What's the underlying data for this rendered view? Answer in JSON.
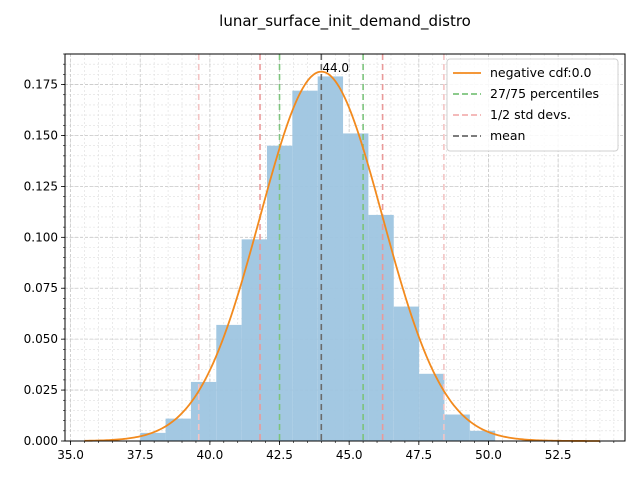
{
  "chart_data": {
    "type": "bar",
    "title": "lunar_surface_init_demand_distro",
    "xlabel": "",
    "ylabel": "",
    "xlim": [
      34.8,
      54.9
    ],
    "ylim": [
      0,
      0.19
    ],
    "x_ticks": [
      35.0,
      37.5,
      40.0,
      42.5,
      45.0,
      47.5,
      50.0,
      52.5
    ],
    "x_tick_labels": [
      "35.0",
      "37.5",
      "40.0",
      "42.5",
      "45.0",
      "47.5",
      "50.0",
      "52.5"
    ],
    "y_ticks": [
      0,
      0.025,
      0.05,
      0.075,
      0.1,
      0.125,
      0.15,
      0.175
    ],
    "y_tick_labels": [
      "0.000",
      "0.025",
      "0.050",
      "0.075",
      "0.100",
      "0.125",
      "0.150",
      "0.175"
    ],
    "grid": true,
    "histogram": {
      "name": "",
      "color": "#9ec5e0",
      "bin_width": 0.91,
      "bins": [
        {
          "left": 37.5,
          "value": 0.004
        },
        {
          "left": 38.41,
          "value": 0.011
        },
        {
          "left": 39.32,
          "value": 0.029
        },
        {
          "left": 40.23,
          "value": 0.057
        },
        {
          "left": 41.14,
          "value": 0.099
        },
        {
          "left": 42.05,
          "value": 0.145
        },
        {
          "left": 42.96,
          "value": 0.172
        },
        {
          "left": 43.87,
          "value": 0.179
        },
        {
          "left": 44.78,
          "value": 0.151
        },
        {
          "left": 45.69,
          "value": 0.111
        },
        {
          "left": 46.6,
          "value": 0.066
        },
        {
          "left": 47.51,
          "value": 0.033
        },
        {
          "left": 48.42,
          "value": 0.013
        },
        {
          "left": 49.33,
          "value": 0.005
        }
      ]
    },
    "curve": {
      "name": "negative cdf:0.0",
      "color": "#f28a1e",
      "mean": 44.0,
      "std": 2.2,
      "x_range": [
        35.5,
        54.0
      ]
    },
    "vlines": [
      {
        "group": "27/75 percentiles",
        "x": 42.5,
        "color": "#7cc47c"
      },
      {
        "group": "27/75 percentiles",
        "x": 45.5,
        "color": "#7cc47c"
      },
      {
        "group": "1/2 std devs.",
        "x": 41.8,
        "color": "#ea9a9a"
      },
      {
        "group": "1/2 std devs.",
        "x": 46.2,
        "color": "#ea9a9a"
      },
      {
        "group": "1/2 std devs.",
        "x": 39.6,
        "color": "#f3c4c4"
      },
      {
        "group": "1/2 std devs.",
        "x": 48.4,
        "color": "#f3c4c4"
      },
      {
        "group": "mean",
        "x": 44.0,
        "color": "#6a6a6a"
      }
    ],
    "mean_annotation": {
      "x": 44.0,
      "text": "44.0"
    },
    "legend": {
      "placement": "top-right",
      "entries": [
        {
          "label": "negative cdf:0.0",
          "color": "#f28a1e",
          "style": "solid"
        },
        {
          "label": "27/75 percentiles",
          "color": "#7cc47c",
          "style": "dashed"
        },
        {
          "label": "1/2 std devs.",
          "color": "#f3b0b0",
          "style": "dashed"
        },
        {
          "label": "mean",
          "color": "#6a6a6a",
          "style": "dashed"
        }
      ]
    }
  }
}
